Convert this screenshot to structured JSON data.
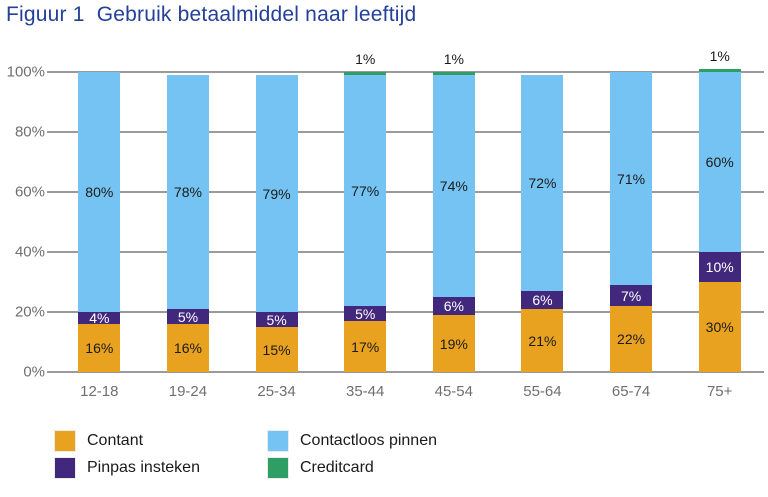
{
  "title": "Figuur 1  Gebruik betaalmiddel naar leeftijd",
  "colors": {
    "contant": "#E9A21F",
    "pinpas": "#41287D",
    "contactloos": "#74C3F3",
    "creditcard": "#2F9E64",
    "title_text": "#24409B",
    "grid": "#9B9B9B",
    "axis_text": "#6F6F6F",
    "bar_label_dark": "#1A1A1A",
    "bar_label_light": "#FFFFFF"
  },
  "chart_data": {
    "type": "bar",
    "stacked": true,
    "title": "Figuur 1  Gebruik betaalmiddel naar leeftijd",
    "xlabel": "",
    "ylabel": "",
    "ylim": [
      0,
      100
    ],
    "grid": true,
    "legend_position": "bottom",
    "categories": [
      "12-18",
      "19-24",
      "25-34",
      "35-44",
      "45-54",
      "55-64",
      "65-74",
      "75+"
    ],
    "series": [
      {
        "name": "Contant",
        "color_key": "contant",
        "values": [
          16,
          16,
          15,
          17,
          19,
          21,
          22,
          30
        ],
        "label_color": "#1A1A1A",
        "label_above": false
      },
      {
        "name": "Pinpas insteken",
        "color_key": "pinpas",
        "values": [
          4,
          5,
          5,
          5,
          6,
          6,
          7,
          10
        ],
        "label_color": "#FFFFFF",
        "label_above": false
      },
      {
        "name": "Contactloos pinnen",
        "color_key": "contactloos",
        "values": [
          80,
          78,
          79,
          77,
          74,
          72,
          71,
          60
        ],
        "label_color": "#1A1A1A",
        "label_above": false
      },
      {
        "name": "Creditcard",
        "color_key": "creditcard",
        "values": [
          0,
          0,
          0,
          1,
          1,
          0,
          0,
          1
        ],
        "label_color": "#1A1A1A",
        "label_above": true
      }
    ],
    "y_ticks": [
      {
        "label": "0%",
        "value": 0
      },
      {
        "label": "20%",
        "value": 20
      },
      {
        "label": "40%",
        "value": 40
      },
      {
        "label": "60%",
        "value": 60
      },
      {
        "label": "80%",
        "value": 80
      },
      {
        "label": "100%",
        "value": 100
      }
    ],
    "legend": [
      {
        "label": "Contant",
        "color_key": "contant"
      },
      {
        "label": "Pinpas insteken",
        "color_key": "pinpas"
      },
      {
        "label": "Contactloos pinnen",
        "color_key": "contactloos"
      },
      {
        "label": "Creditcard",
        "color_key": "creditcard"
      }
    ]
  }
}
